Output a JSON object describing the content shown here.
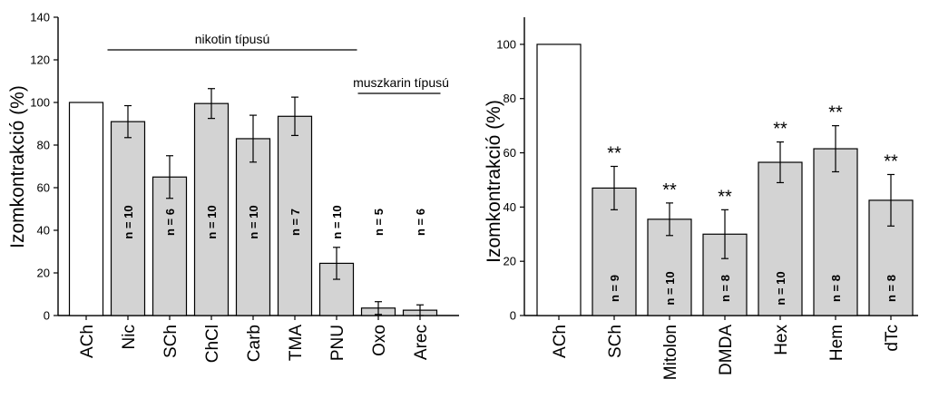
{
  "chart_data": [
    {
      "type": "bar",
      "ylabel": "Izomkontrakció (%)",
      "ylim": [
        0,
        140
      ],
      "yticks": [
        0,
        20,
        40,
        60,
        80,
        100,
        120,
        140
      ],
      "categories": [
        "ACh",
        "Nic",
        "SCh",
        "ChCl",
        "Carb",
        "TMA",
        "PNU",
        "Oxo",
        "Arec"
      ],
      "values": [
        100,
        91,
        65,
        99.5,
        83,
        93.5,
        24.5,
        3.5,
        2.5
      ],
      "errors": [
        0,
        7.5,
        10,
        7,
        11,
        9,
        7.5,
        3,
        2.5
      ],
      "n_labels": [
        "",
        "n = 10",
        "n = 6",
        "n = 10",
        "n = 10",
        "n = 7",
        "n = 10",
        "n = 5",
        "n = 6"
      ],
      "fill_colors": [
        "#ffffff",
        "#d3d3d3",
        "#d3d3d3",
        "#d3d3d3",
        "#d3d3d3",
        "#d3d3d3",
        "#d3d3d3",
        "#d3d3d3",
        "#d3d3d3"
      ],
      "groups": [
        {
          "label": "nikotin típusú",
          "from": 1,
          "to": 6
        },
        {
          "label": "muszkarin típusú",
          "from": 7,
          "to": 8
        }
      ]
    },
    {
      "type": "bar",
      "ylabel": "Izomkontrakció (%)",
      "ylim": [
        0,
        110
      ],
      "yticks": [
        0,
        20,
        40,
        60,
        80,
        100
      ],
      "categories": [
        "ACh",
        "SCh",
        "Mitolon",
        "DMDA",
        "Hex",
        "Hem",
        "dTc"
      ],
      "values": [
        100,
        47,
        35.5,
        30,
        56.5,
        61.5,
        42.5
      ],
      "errors": [
        0,
        8,
        6,
        9,
        7.5,
        8.5,
        9.5
      ],
      "n_labels": [
        "",
        "n = 9",
        "n = 10",
        "n = 8",
        "n = 10",
        "n = 8",
        "n = 8"
      ],
      "significance": [
        "",
        "**",
        "**",
        "**",
        "**",
        "**",
        "**"
      ],
      "fill_colors": [
        "#ffffff",
        "#d3d3d3",
        "#d3d3d3",
        "#d3d3d3",
        "#d3d3d3",
        "#d3d3d3",
        "#d3d3d3"
      ]
    }
  ]
}
